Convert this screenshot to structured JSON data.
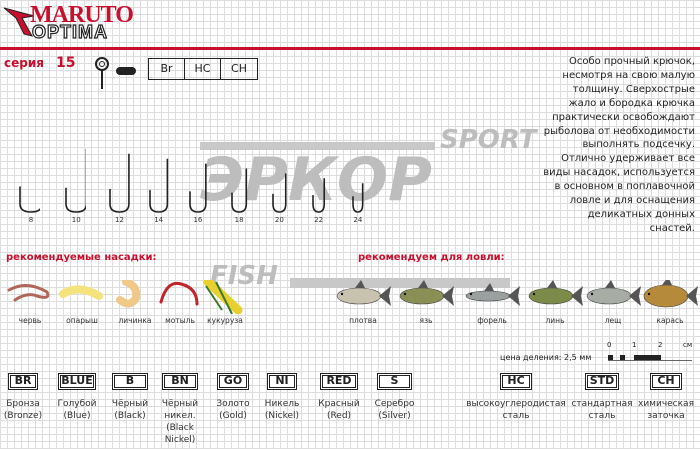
{
  "brand": {
    "line1": "MARUTO",
    "line2": "OPTIMA"
  },
  "series": {
    "label": "серия",
    "number": "15"
  },
  "hook_codes": [
    "Br",
    "HC",
    "CH"
  ],
  "description": [
    "Особо прочный крючок,",
    "несмотря на свою малую",
    "толщину. Сверхострые",
    "жало и бородка крючка",
    "практически освобождают",
    "рыболова от необходимости",
    "выполнять подсечку.",
    "Отлично удерживает все",
    "виды насадок, используется",
    "в основном в поплавочной",
    "ловле и для оснащения",
    "деликатных донных снастей."
  ],
  "watermark": {
    "top": "SPORT",
    "main": "ЭРКОР",
    "bottom": "FISH"
  },
  "hook_sizes": [
    "8",
    "10",
    "12",
    "14",
    "16",
    "18",
    "20",
    "22",
    "24"
  ],
  "baits": {
    "title": "рекомендуемые насадки:",
    "items": [
      "червь",
      "опарыш",
      "личинка",
      "мотыль",
      "кукуруза"
    ]
  },
  "fish": {
    "title": "рекомендуем для ловли:",
    "items": [
      "плотва",
      "язь",
      "форель",
      "линь",
      "лещ",
      "карась"
    ]
  },
  "scale": {
    "label": "цена деления: 2,5 мм",
    "ticks": [
      "0",
      "1",
      "2",
      "см"
    ]
  },
  "colors_legend": [
    {
      "code": "BR",
      "name": "Бронза",
      "en": "(Bronze)"
    },
    {
      "code": "BLUE",
      "name": "Голубой",
      "en": "(Blue)"
    },
    {
      "code": "B",
      "name": "Чёрный",
      "en": "(Black)"
    },
    {
      "code": "BN",
      "name": "Чёрный никел.",
      "en": "(Black Nickel)"
    },
    {
      "code": "GO",
      "name": "Золото",
      "en": "(Gold)"
    },
    {
      "code": "NI",
      "name": "Никель",
      "en": "(Nickel)"
    },
    {
      "code": "RED",
      "name": "Красный",
      "en": "(Red)"
    },
    {
      "code": "S",
      "name": "Серебро",
      "en": "(Silver)"
    }
  ],
  "material_legend": [
    {
      "code": "HC",
      "name": "высокоуглеродистая",
      "en": "сталь"
    },
    {
      "code": "STD",
      "name": "стандартная",
      "en": "сталь"
    },
    {
      "code": "CH",
      "name": "химическая",
      "en": "заточка"
    }
  ],
  "accent": "#c8102e"
}
